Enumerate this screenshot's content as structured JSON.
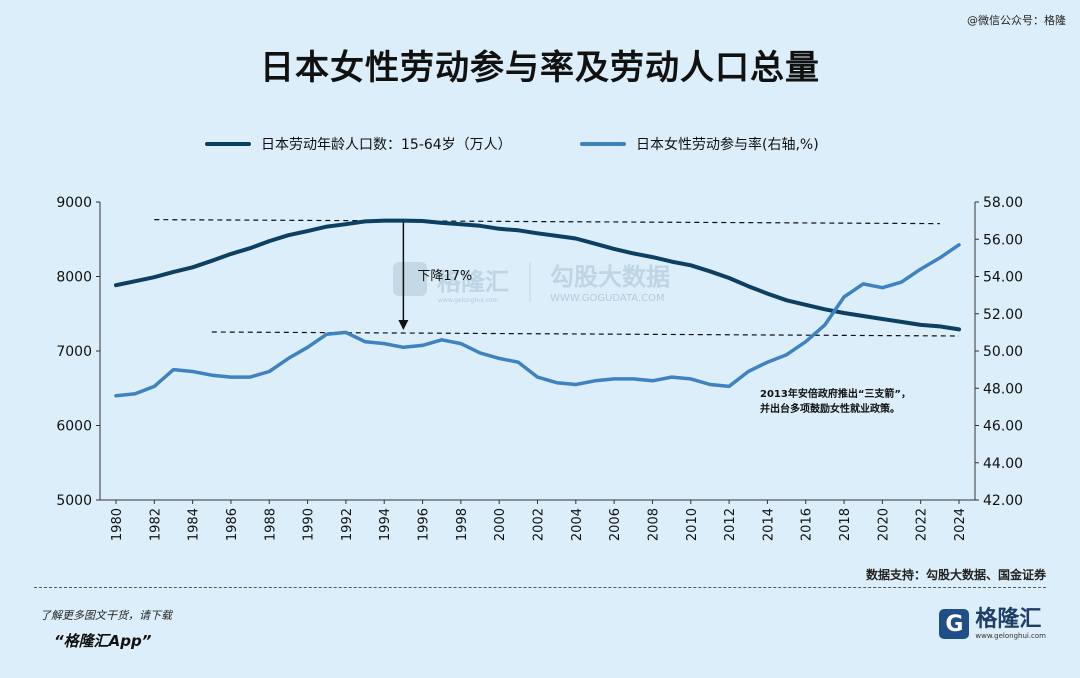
{
  "watermark_top": "@微信公众号：格隆",
  "chart_data": {
    "type": "line",
    "title": "日本女性劳动参与率及劳动人口总量",
    "x": [
      1980,
      1981,
      1982,
      1983,
      1984,
      1985,
      1986,
      1987,
      1988,
      1989,
      1990,
      1991,
      1992,
      1993,
      1994,
      1995,
      1996,
      1997,
      1998,
      1999,
      2000,
      2001,
      2002,
      2003,
      2004,
      2005,
      2006,
      2007,
      2008,
      2009,
      2010,
      2011,
      2012,
      2013,
      2014,
      2015,
      2016,
      2017,
      2018,
      2019,
      2020,
      2021,
      2022,
      2023,
      2024
    ],
    "x_tick_labels": [
      "1980",
      "1982",
      "1984",
      "1986",
      "1988",
      "1990",
      "1992",
      "1994",
      "1996",
      "1998",
      "2000",
      "2002",
      "2004",
      "2006",
      "2008",
      "2010",
      "2012",
      "2014",
      "2016",
      "2018",
      "2020",
      "2022",
      "2024"
    ],
    "series": [
      {
        "name": "日本劳动年龄人口数：15-64岁（万人）",
        "axis": "left",
        "color": "#0d3f63",
        "values": [
          7883,
          7937,
          7990,
          8062,
          8124,
          8211,
          8303,
          8380,
          8475,
          8555,
          8610,
          8670,
          8702,
          8740,
          8750,
          8750,
          8745,
          8720,
          8700,
          8680,
          8640,
          8620,
          8580,
          8545,
          8510,
          8440,
          8370,
          8310,
          8260,
          8200,
          8150,
          8070,
          7980,
          7870,
          7770,
          7680,
          7620,
          7560,
          7510,
          7470,
          7430,
          7390,
          7350,
          7330,
          7290
        ]
      },
      {
        "name": "日本女性劳动参与率(右轴,%)",
        "axis": "right",
        "color": "#3f82c2",
        "values": [
          47.6,
          47.7,
          48.1,
          49.0,
          48.9,
          48.7,
          48.6,
          48.6,
          48.9,
          49.6,
          50.2,
          50.9,
          51.0,
          50.5,
          50.4,
          50.2,
          50.3,
          50.6,
          50.4,
          49.9,
          49.6,
          49.4,
          48.6,
          48.3,
          48.2,
          48.4,
          48.5,
          48.5,
          48.4,
          48.6,
          48.5,
          48.2,
          48.1,
          48.9,
          49.4,
          49.8,
          50.5,
          51.4,
          52.9,
          53.6,
          53.4,
          53.7,
          54.4,
          55.0,
          55.7
        ]
      }
    ],
    "y_left": {
      "min": 5000,
      "max": 9000,
      "ticks": [
        "5000",
        "6000",
        "7000",
        "8000",
        "9000"
      ]
    },
    "y_right": {
      "min": 42,
      "max": 58,
      "ticks": [
        "42.00",
        "44.00",
        "46.00",
        "48.00",
        "50.00",
        "52.00",
        "54.00",
        "56.00",
        "58.00"
      ]
    },
    "annotations": {
      "drop_label": "下降17%",
      "policy_line1": "2013年安倍政府推出“三支箭”，",
      "policy_line2": "并出台多项鼓励女性就业政策。",
      "watermark_cn": "勾股大数据",
      "watermark_url": "WWW.GOGUDATA.COM",
      "watermark_brand": "格隆汇",
      "watermark_brand_url": "www.gelonghui.com"
    },
    "grid": false,
    "legend_position": "top"
  },
  "source_text": "数据支持：勾股大数据、国金证券",
  "footnote_line1": "了解更多图文干货，请下载",
  "footnote_line2": "“格隆汇App”",
  "brand_logo_letter": "G",
  "brand_name": "格隆汇",
  "brand_url": "www.gelonghui.com"
}
